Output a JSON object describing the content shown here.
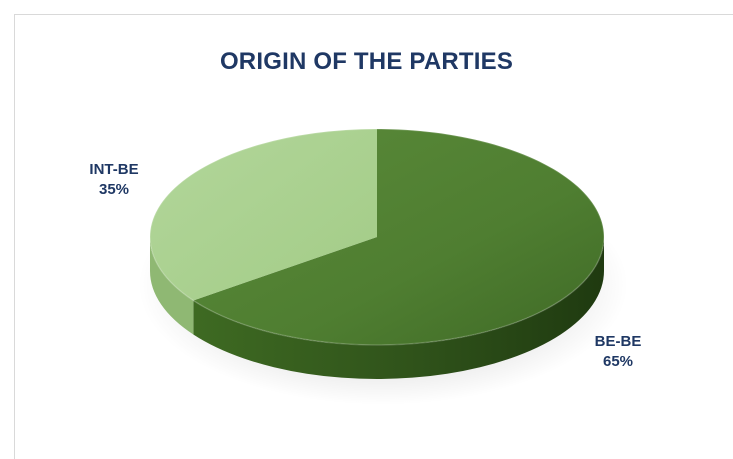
{
  "colors": {
    "title": "#1f3864",
    "label": "#1f3864",
    "slice_dark": "#548235",
    "slice_light": "#a9d18e"
  },
  "chart_data": {
    "type": "pie",
    "title": "ORIGIN OF THE PARTIES",
    "style": "3d",
    "slices": [
      {
        "label": "BE-BE",
        "value": 65,
        "percent_label": "65%",
        "color": "#548235"
      },
      {
        "label": "INT-BE",
        "value": 35,
        "percent_label": "35%",
        "color": "#a9d18e"
      }
    ]
  }
}
